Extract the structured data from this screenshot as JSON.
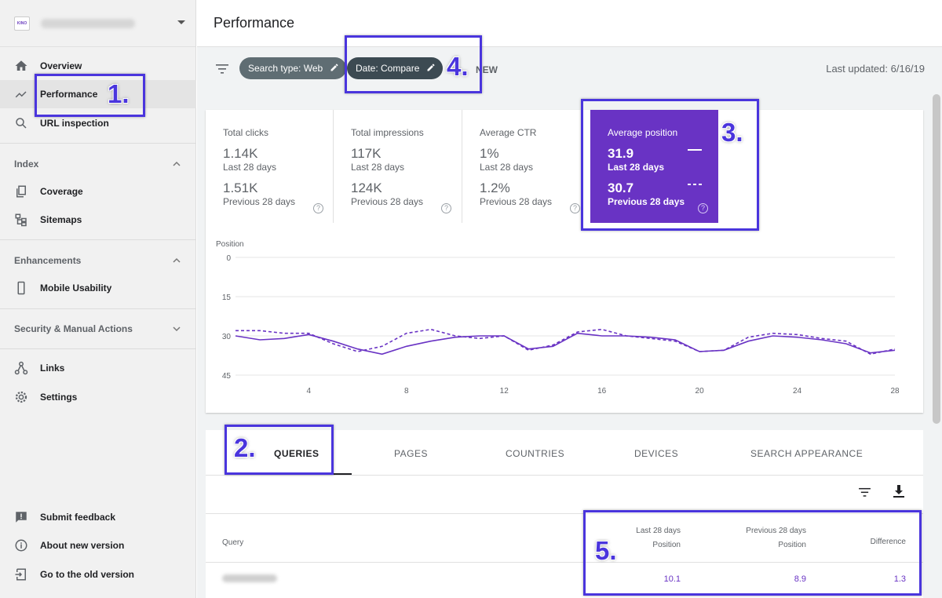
{
  "sidebar": {
    "logo_text": "KINO",
    "nav_top": [
      {
        "label": "Overview",
        "icon": "home-icon"
      },
      {
        "label": "Performance",
        "icon": "trending-up-icon"
      },
      {
        "label": "URL inspection",
        "icon": "search-icon"
      }
    ],
    "sections": {
      "index": {
        "title": "Index",
        "items": [
          "Coverage",
          "Sitemaps"
        ]
      },
      "enhancements": {
        "title": "Enhancements",
        "items": [
          "Mobile Usability"
        ]
      },
      "security": {
        "title": "Security & Manual Actions"
      }
    },
    "nav_mid": [
      "Links",
      "Settings"
    ],
    "nav_bottom": [
      "Submit feedback",
      "About new version",
      "Go to the old version"
    ]
  },
  "header": {
    "title": "Performance"
  },
  "filters": {
    "search_type": "Search type: Web",
    "date": "Date: Compare",
    "new_label": "NEW",
    "last_updated": "Last updated: 6/16/19"
  },
  "metrics": [
    {
      "name": "Total clicks",
      "current": "1.14K",
      "current_period": "Last 28 days",
      "previous": "1.51K",
      "previous_period": "Previous 28 days"
    },
    {
      "name": "Total impressions",
      "current": "117K",
      "current_period": "Last 28 days",
      "previous": "124K",
      "previous_period": "Previous 28 days"
    },
    {
      "name": "Average CTR",
      "current": "1%",
      "current_period": "Last 28 days",
      "previous": "1.2%",
      "previous_period": "Previous 28 days"
    },
    {
      "name": "Average position",
      "current": "31.9",
      "current_period": "Last 28 days",
      "previous": "30.7",
      "previous_period": "Previous 28 days",
      "selected": true
    }
  ],
  "chart_data": {
    "type": "line",
    "ylabel": "Position",
    "ylim": [
      45,
      0
    ],
    "yticks": [
      0,
      15,
      30,
      45
    ],
    "xticks": [
      4,
      8,
      12,
      16,
      20,
      24,
      28
    ],
    "x": [
      1,
      2,
      3,
      4,
      5,
      6,
      7,
      8,
      9,
      10,
      11,
      12,
      13,
      14,
      15,
      16,
      17,
      18,
      19,
      20,
      21,
      22,
      23,
      24,
      25,
      26,
      27,
      28
    ],
    "series": [
      {
        "style": "solid",
        "color": "#6933c4",
        "values": [
          30,
          31.5,
          31,
          29.5,
          32,
          35,
          37,
          34,
          32,
          30.5,
          30,
          30,
          35,
          34,
          29,
          30,
          30,
          30.5,
          31.5,
          36,
          35.5,
          32,
          30,
          30.5,
          31.5,
          33,
          36.5,
          35.5
        ]
      },
      {
        "style": "dashed",
        "color": "#6933c4",
        "values": [
          28,
          28,
          29,
          29,
          33,
          36,
          34,
          29,
          27.5,
          30,
          31,
          30,
          35.5,
          33.5,
          28.5,
          27.5,
          30,
          31,
          32,
          36,
          35.5,
          30.5,
          29,
          29.5,
          31,
          32,
          37,
          35
        ]
      }
    ]
  },
  "tabs": [
    "QUERIES",
    "PAGES",
    "COUNTRIES",
    "DEVICES",
    "SEARCH APPEARANCE"
  ],
  "table": {
    "query_header": "Query",
    "col1_l1": "Last 28 days",
    "col1_l2": "Position",
    "col2_l1": "Previous 28 days",
    "col2_l2": "Position",
    "col3": "Difference",
    "row": {
      "v1": "10.1",
      "v2": "8.9",
      "v3": "1.3"
    }
  },
  "annotations": [
    "1.",
    "2.",
    "3.",
    "4.",
    "5."
  ],
  "accent_color": "#6933c4",
  "annotation_color": "#4a35dd"
}
